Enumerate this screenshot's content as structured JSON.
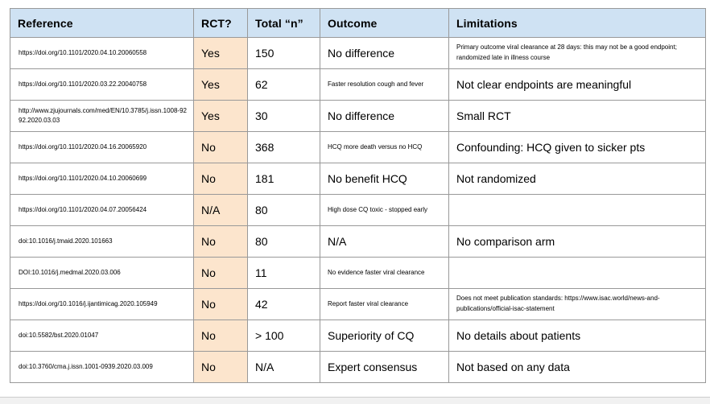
{
  "table": {
    "colors": {
      "header_bg": "#cfe2f3",
      "rct_bg": "#fce5cd",
      "border": "#999999"
    },
    "columns": [
      {
        "label": "Reference"
      },
      {
        "label": "RCT?"
      },
      {
        "label": "Total “n”"
      },
      {
        "label": "Outcome"
      },
      {
        "label": "Limitations"
      }
    ],
    "rows": [
      {
        "reference": "https://doi.org/10.1101/2020.04.10.20060558",
        "rct": "Yes",
        "total_n": "150",
        "outcome": "No difference",
        "outcome_size": "large",
        "limitations": "Primary outcome viral clearance at 28 days: this may not be a good endpoint; randomized late in illness course",
        "limitations_size": "small"
      },
      {
        "reference": "https://doi.org/10.1101/2020.03.22.20040758",
        "rct": "Yes",
        "total_n": "62",
        "outcome": "Faster resolution cough and fever",
        "outcome_size": "small",
        "limitations": "Not clear endpoints are meaningful",
        "limitations_size": "large"
      },
      {
        "reference": "http://www.zjujournals.com/med/EN/10.3785/j.issn.1008-9292.2020.03.03",
        "rct": "Yes",
        "total_n": "30",
        "outcome": "No difference",
        "outcome_size": "large",
        "limitations": "Small RCT",
        "limitations_size": "large"
      },
      {
        "reference": "https://doi.org/10.1101/2020.04.16.20065920",
        "rct": "No",
        "total_n": "368",
        "outcome": "HCQ more death versus no HCQ",
        "outcome_size": "small",
        "limitations": "Confounding: HCQ given to sicker pts",
        "limitations_size": "large"
      },
      {
        "reference": "https://doi.org/10.1101/2020.04.10.20060699",
        "rct": "No",
        "total_n": "181",
        "outcome": "No benefit HCQ",
        "outcome_size": "large",
        "limitations": "Not randomized",
        "limitations_size": "large"
      },
      {
        "reference": "https://doi.org/10.1101/2020.04.07.20056424",
        "rct": "N/A",
        "total_n": "80",
        "outcome": "High dose CQ toxic - stopped early",
        "outcome_size": "small",
        "limitations": "",
        "limitations_size": "large"
      },
      {
        "reference": "doi:10.1016/j.tmaid.2020.101663",
        "rct": "No",
        "total_n": "80",
        "outcome": "N/A",
        "outcome_size": "large",
        "limitations": "No comparison arm",
        "limitations_size": "large"
      },
      {
        "reference": "DOI:10.1016/j.medmal.2020.03.006",
        "rct": "No",
        "total_n": "11",
        "outcome": "No evidence faster viral clearance",
        "outcome_size": "small",
        "limitations": "",
        "limitations_size": "large"
      },
      {
        "reference": "https://doi.org/10.1016/j.ijantimicag.2020.105949",
        "rct": "No",
        "total_n": "42",
        "outcome": "Report faster viral clearance",
        "outcome_size": "small",
        "limitations": "Does not meet publication standards: https://www.isac.world/news-and-publications/official-isac-statement",
        "limitations_size": "small"
      },
      {
        "reference": "doi:10.5582/bst.2020.01047",
        "rct": "No",
        "total_n": "> 100",
        "outcome": "Superiority of CQ",
        "outcome_size": "large",
        "limitations": "No details about patients",
        "limitations_size": "large"
      },
      {
        "reference": "doi:10.3760/cma.j.issn.1001-0939.2020.03.009",
        "rct": "No",
        "total_n": "N/A",
        "outcome": "Expert consensus",
        "outcome_size": "large",
        "limitations": "Not based on any data",
        "limitations_size": "large"
      }
    ]
  }
}
